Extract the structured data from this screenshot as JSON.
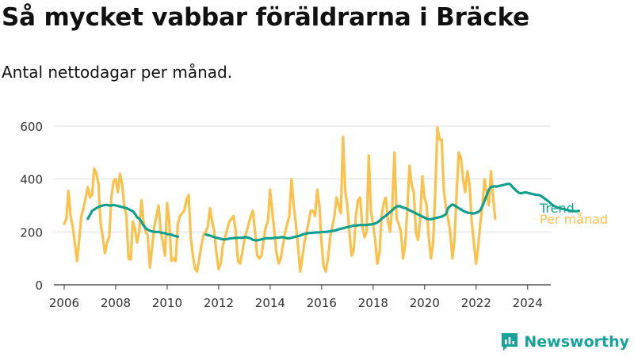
{
  "title": "Så mycket vabbar föräldrarna i Bräcke",
  "subtitle": "Antal nettodagar per månad.",
  "brand": {
    "name": "Newsworthy",
    "icon": "newsworthy-logo-icon",
    "color": "#15a39a"
  },
  "chart_data": {
    "type": "line",
    "title": "Så mycket vabbar föräldrarna i Bräcke",
    "subtitle": "Antal nettodagar per månad.",
    "xlabel": "",
    "ylabel": "",
    "xlim": [
      2005.6,
      2024.9
    ],
    "ylim": [
      0,
      600
    ],
    "xticks": [
      2006,
      2008,
      2010,
      2012,
      2014,
      2016,
      2018,
      2020,
      2022,
      2024
    ],
    "yticks": [
      0,
      200,
      400,
      600
    ],
    "grid": true,
    "legend": "right-end labels",
    "series": [
      {
        "name": "Per månad",
        "color": "#fbc14d",
        "start": 2006.0,
        "step": 0.0833,
        "values": [
          230,
          250,
          355,
          260,
          220,
          155,
          90,
          170,
          260,
          290,
          330,
          370,
          330,
          340,
          440,
          420,
          380,
          230,
          180,
          120,
          160,
          180,
          330,
          390,
          400,
          350,
          420,
          380,
          300,
          260,
          100,
          95,
          240,
          210,
          160,
          200,
          320,
          240,
          200,
          185,
          65,
          140,
          220,
          260,
          300,
          200,
          160,
          110,
          310,
          240,
          90,
          100,
          90,
          230,
          260,
          270,
          280,
          320,
          340,
          180,
          110,
          60,
          50,
          100,
          150,
          190,
          200,
          220,
          290,
          240,
          200,
          120,
          60,
          80,
          150,
          180,
          210,
          240,
          250,
          260,
          200,
          90,
          80,
          120,
          170,
          200,
          230,
          260,
          280,
          200,
          110,
          100,
          110,
          170,
          220,
          240,
          360,
          280,
          200,
          120,
          80,
          100,
          150,
          200,
          230,
          260,
          400,
          300,
          230,
          150,
          50,
          100,
          160,
          200,
          240,
          280,
          280,
          260,
          360,
          300,
          160,
          70,
          50,
          100,
          180,
          220,
          260,
          330,
          300,
          270,
          560,
          360,
          300,
          200,
          110,
          130,
          260,
          320,
          330,
          220,
          180,
          200,
          490,
          280,
          230,
          170,
          80,
          120,
          260,
          310,
          330,
          240,
          200,
          300,
          500,
          250,
          230,
          200,
          100,
          150,
          290,
          450,
          380,
          350,
          200,
          170,
          250,
          410,
          330,
          300,
          180,
          100,
          160,
          350,
          595,
          550,
          550,
          360,
          290,
          250,
          200,
          100,
          170,
          350,
          500,
          480,
          400,
          350,
          430,
          380,
          240,
          160,
          80,
          140,
          230,
          300,
          400,
          350,
          300,
          430,
          330,
          250
        ]
      },
      {
        "name": "Trend",
        "color": "#12a08d",
        "segments": [
          {
            "start": 2006.92,
            "step": 0.0833,
            "values": [
              250,
              265,
              280,
              285,
              290,
              295,
              298,
              300,
              302,
              302,
              300,
              300,
              302,
              300,
              298,
              296,
              294,
              292,
              290,
              286,
              282,
              278,
              268,
              255,
              250,
              238,
              224,
              214,
              208,
              204,
              202,
              200,
              200,
              200,
              198,
              196,
              195,
              192,
              190,
              190,
              186,
              184,
              182
            ]
          },
          {
            "start": 2011.5,
            "step": 0.0833,
            "values": [
              190,
              188,
              186,
              183,
              180,
              178,
              176,
              174,
              172,
              172,
              173,
              175,
              176,
              177,
              177,
              178,
              178,
              178,
              180,
              180,
              178,
              175,
              170,
              168,
              168,
              170,
              172,
              174,
              176,
              176,
              176,
              176,
              178,
              178,
              178,
              180,
              180,
              178,
              176,
              176,
              178,
              180,
              182,
              184,
              186,
              190,
              192,
              194,
              196,
              196,
              197,
              198,
              198,
              198,
              200,
              200,
              200,
              201,
              202,
              204,
              205,
              207,
              210,
              212,
              214,
              216,
              218,
              220,
              222,
              224,
              224,
              225,
              226,
              226,
              226,
              226,
              228,
              228,
              230,
              232,
              236,
              242,
              250,
              256,
              262,
              268,
              276,
              282,
              290,
              296,
              298,
              296,
              292,
              290,
              286,
              282,
              278,
              274,
              270,
              266,
              262,
              258,
              254,
              250,
              248,
              248,
              250,
              252,
              254,
              256,
              258,
              262,
              268,
              290,
              298,
              304,
              300,
              295,
              290,
              285,
              280,
              276,
              273,
              272,
              270,
              270,
              272,
              275,
              282,
              298,
              318,
              340,
              360,
              370,
              372,
              372,
              372,
              374,
              376,
              378,
              380,
              382,
              380,
              370,
              362,
              354,
              348,
              346,
              348,
              350,
              348,
              346,
              344,
              342,
              340,
              340,
              338,
              332,
              326,
              320,
              314,
              306,
              300,
              296,
              292,
              290,
              288,
              286,
              284,
              282,
              280,
              280,
              278,
              278,
              280
            ]
          }
        ]
      }
    ]
  }
}
